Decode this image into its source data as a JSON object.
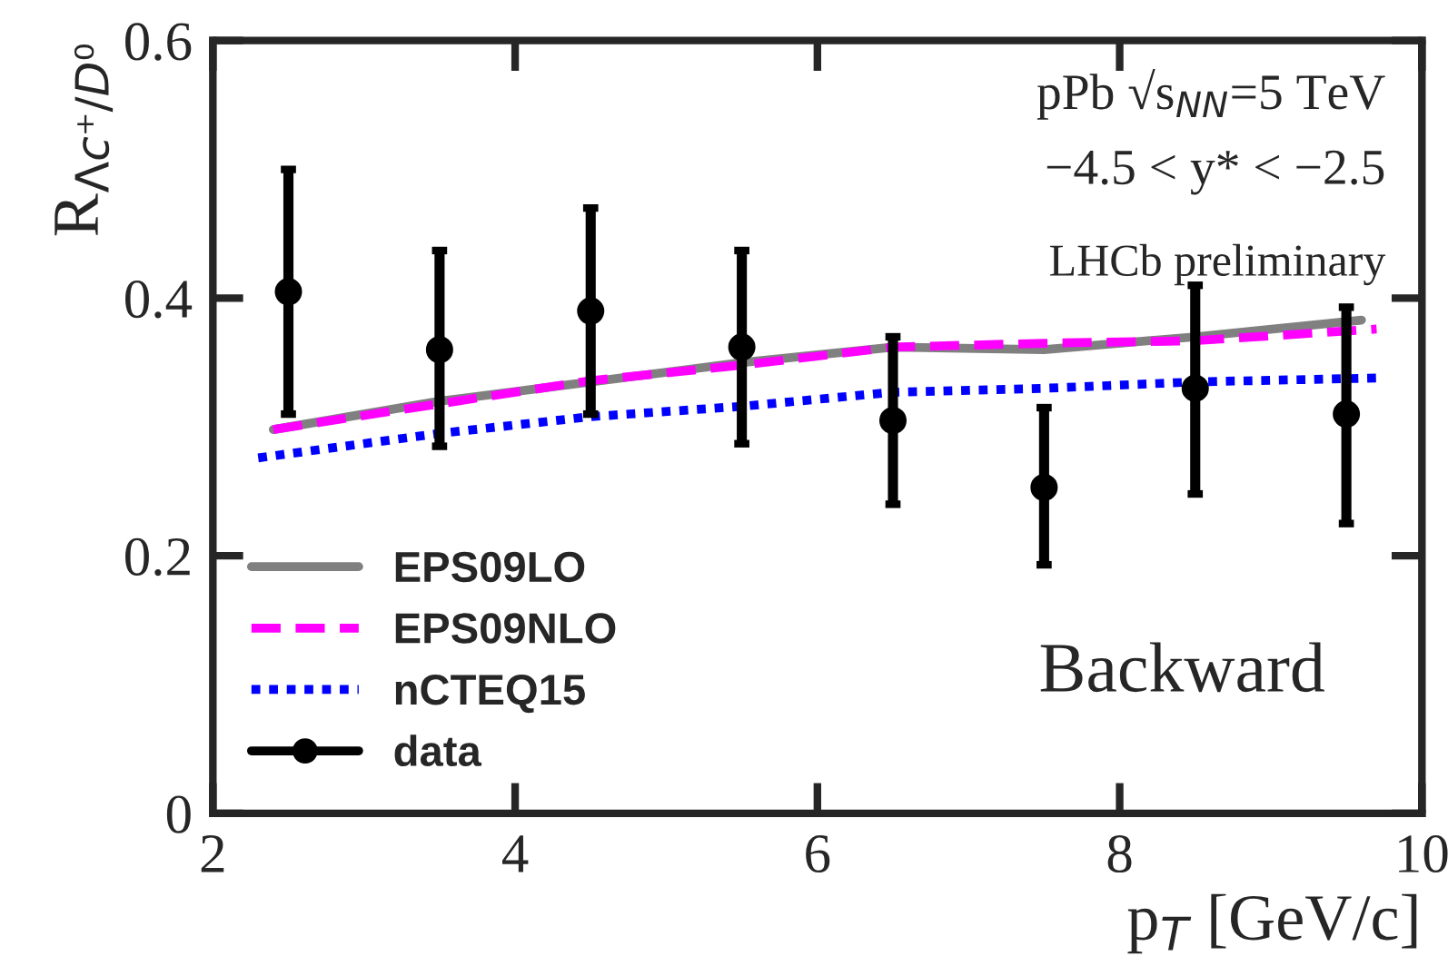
{
  "chart_data": {
    "type": "line",
    "xlabel": "p$_{T}$ [GeV/c]",
    "ylabel": "R$_{Λc⁺/D⁰}$",
    "xlim": [
      2,
      10
    ],
    "xticks": [
      2,
      4,
      6,
      8,
      10
    ],
    "ylim": [
      0,
      0.6
    ],
    "yticks": [
      0,
      0.2,
      0.4,
      0.6
    ],
    "grid": false,
    "legend": "bottom left",
    "annotations": [
      "pPb √s$_{NN}$=5 TeV",
      "−4.5 < y* < −2.5",
      "LHCb preliminary",
      "Backward"
    ],
    "series": [
      {
        "name": "EPS09LO",
        "color": "#808080",
        "line_style": "solid",
        "marker": "none",
        "x": [
          2.4,
          3.5,
          4.5,
          5.5,
          6.5,
          7.5,
          8.5,
          9.6
        ],
        "values": [
          0.298,
          0.32,
          0.335,
          0.35,
          0.362,
          0.36,
          0.37,
          0.383
        ]
      },
      {
        "name": "EPS09NLO",
        "color": "#ff00ff",
        "line_style": "dashed",
        "marker": "none",
        "x": [
          2.4,
          3.5,
          4.5,
          5.5,
          6.5,
          7.5,
          8.5,
          9.7
        ],
        "values": [
          0.298,
          0.318,
          0.336,
          0.348,
          0.362,
          0.365,
          0.367,
          0.376
        ]
      },
      {
        "name": "nCTEQ15",
        "color": "#0000ff",
        "line_style": "dotted",
        "marker": "none",
        "x": [
          2.3,
          3.5,
          4.5,
          5.5,
          6.5,
          7.5,
          8.5,
          9.7
        ],
        "values": [
          0.276,
          0.295,
          0.308,
          0.316,
          0.327,
          0.33,
          0.335,
          0.338
        ]
      },
      {
        "name": "data",
        "type": "scatter",
        "color": "#000000",
        "marker": "circle",
        "x": [
          2.5,
          3.5,
          4.5,
          5.5,
          6.5,
          7.5,
          8.5,
          9.5
        ],
        "values": [
          0.405,
          0.36,
          0.39,
          0.362,
          0.305,
          0.253,
          0.33,
          0.31
        ],
        "errors": [
          [
            0.31,
            0.5
          ],
          [
            0.285,
            0.437
          ],
          [
            0.31,
            0.47
          ],
          [
            0.287,
            0.437
          ],
          [
            0.24,
            0.37
          ],
          [
            0.193,
            0.315
          ],
          [
            0.248,
            0.41
          ],
          [
            0.225,
            0.393
          ]
        ]
      }
    ]
  }
}
